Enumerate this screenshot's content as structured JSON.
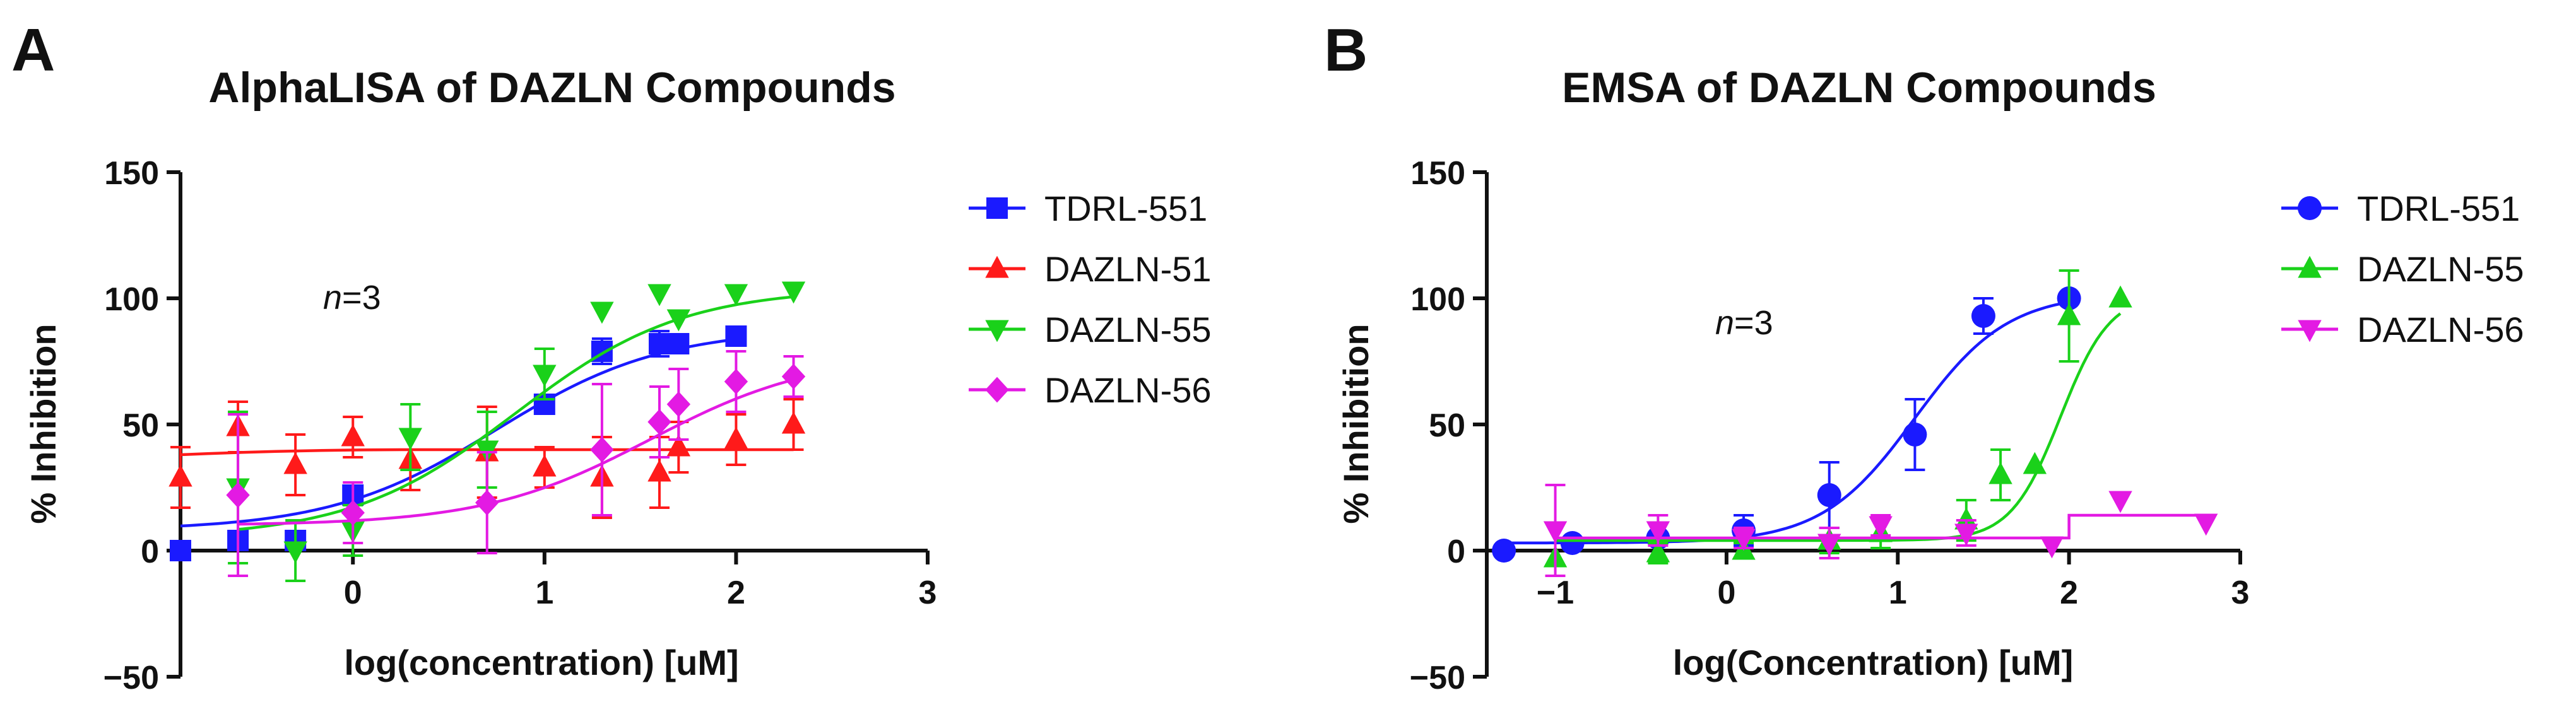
{
  "chart_data": [
    {
      "panel_label": "A",
      "type": "scatter",
      "title": "AlphaLISA of DAZLN Compounds",
      "xlabel": "log(concentration) [uM]",
      "ylabel": "% Inhibition",
      "xlim": [
        -0.9,
        3
      ],
      "ylim": [
        -50,
        150
      ],
      "xticks": [
        0,
        1,
        2,
        3
      ],
      "yticks": [
        -50,
        0,
        50,
        100,
        150
      ],
      "annotation": {
        "n_label": "n",
        "n_value": "=3"
      },
      "legend_position": "right",
      "series": [
        {
          "name": "TDRL-551",
          "color": "#1a1aff",
          "marker": "square",
          "x": [
            -0.9,
            -0.6,
            -0.3,
            0,
            1,
            1.3,
            1.6,
            1.7,
            2
          ],
          "y": [
            0,
            4,
            4,
            22,
            58,
            79,
            82,
            82,
            85
          ],
          "err": [
            0,
            0,
            0,
            0,
            0,
            5,
            5,
            3,
            0
          ],
          "fit": {
            "bottom": 8,
            "top": 88,
            "ec50": 0.75,
            "hill": 1.0
          }
        },
        {
          "name": "DAZLN-51",
          "color": "#ff1a1a",
          "marker": "triangle-up",
          "x": [
            -0.9,
            -0.6,
            -0.3,
            0,
            0.3,
            0.7,
            1,
            1.3,
            1.6,
            1.7,
            2,
            2.3
          ],
          "y": [
            29,
            49,
            34,
            45,
            36,
            39,
            33,
            29,
            31,
            41,
            44,
            50
          ],
          "err": [
            12,
            10,
            12,
            8,
            12,
            18,
            8,
            16,
            14,
            10,
            10,
            10
          ],
          "fit": {
            "flat": true,
            "level": 40,
            "start": 38
          }
        },
        {
          "name": "DAZLN-55",
          "color": "#1ad11a",
          "marker": "triangle-down",
          "x": [
            -0.6,
            -0.3,
            0,
            0.3,
            0.7,
            1,
            1.3,
            1.6,
            1.7,
            2,
            2.3
          ],
          "y": [
            25,
            0,
            8,
            45,
            40,
            70,
            95,
            102,
            92,
            102,
            103
          ],
          "err": [
            30,
            12,
            10,
            13,
            15,
            10,
            0,
            0,
            0,
            0,
            0
          ],
          "fit": {
            "bottom": 5,
            "top": 104,
            "ec50": 0.85,
            "hill": 1.0
          }
        },
        {
          "name": "DAZLN-56",
          "color": "#e31ae3",
          "marker": "diamond",
          "x": [
            -0.6,
            0,
            0.7,
            1.3,
            1.6,
            1.7,
            2,
            2.3
          ],
          "y": [
            22,
            15,
            19,
            40,
            51,
            58,
            67,
            69
          ],
          "err": [
            32,
            12,
            20,
            26,
            14,
            14,
            12,
            8
          ],
          "fit": {
            "bottom": 10,
            "top": 78,
            "ec50": 1.55,
            "hill": 1.0
          }
        }
      ]
    },
    {
      "panel_label": "B",
      "type": "scatter",
      "title": "EMSA of DAZLN Compounds",
      "xlabel": "log(Concentration) [uM]",
      "ylabel": "% Inhibition",
      "xlim": [
        -1.4,
        3
      ],
      "ylim": [
        -50,
        150
      ],
      "xticks": [
        -1,
        0,
        1,
        2,
        3
      ],
      "yticks": [
        -50,
        0,
        50,
        100,
        150
      ],
      "annotation": {
        "n_label": "n",
        "n_value": "=3"
      },
      "legend_position": "right",
      "series": [
        {
          "name": "TDRL-551",
          "color": "#1a1aff",
          "marker": "circle",
          "x": [
            -1.3,
            -0.9,
            -0.4,
            0.1,
            0.6,
            1.1,
            1.5,
            2
          ],
          "y": [
            0,
            3,
            5,
            8,
            22,
            46,
            93,
            100
          ],
          "err": [
            0,
            0,
            0,
            6,
            13,
            14,
            7,
            0
          ],
          "fit": {
            "bottom": 3,
            "top": 102,
            "ec50": 1.1,
            "hill": 1.6
          }
        },
        {
          "name": "DAZLN-55",
          "color": "#1ad11a",
          "marker": "triangle-up",
          "x": [
            -1,
            -0.4,
            0.1,
            0.6,
            0.9,
            1.4,
            1.6,
            1.8,
            2,
            2.3
          ],
          "y": [
            -3,
            -1,
            0,
            4,
            7,
            12,
            30,
            34,
            93,
            100
          ],
          "err": [
            0,
            4,
            3,
            5,
            6,
            8,
            10,
            0,
            18,
            0
          ],
          "fit": {
            "bottom": 4,
            "top": 102,
            "ec50": 1.95,
            "hill": 3.0
          }
        },
        {
          "name": "DAZLN-56",
          "color": "#e31ae3",
          "marker": "triangle-down",
          "x": [
            -1,
            -0.4,
            0.1,
            0.6,
            0.9,
            1.4,
            1.9,
            2.3,
            2.8
          ],
          "y": [
            8,
            8,
            5,
            3,
            10,
            7,
            2,
            20,
            11
          ],
          "err": [
            18,
            6,
            4,
            6,
            4,
            5,
            0,
            0,
            0
          ],
          "fit": {
            "flat": true,
            "level": 5,
            "step_at": 2.0,
            "level_after": 14,
            "end": 2.8
          }
        }
      ]
    }
  ]
}
